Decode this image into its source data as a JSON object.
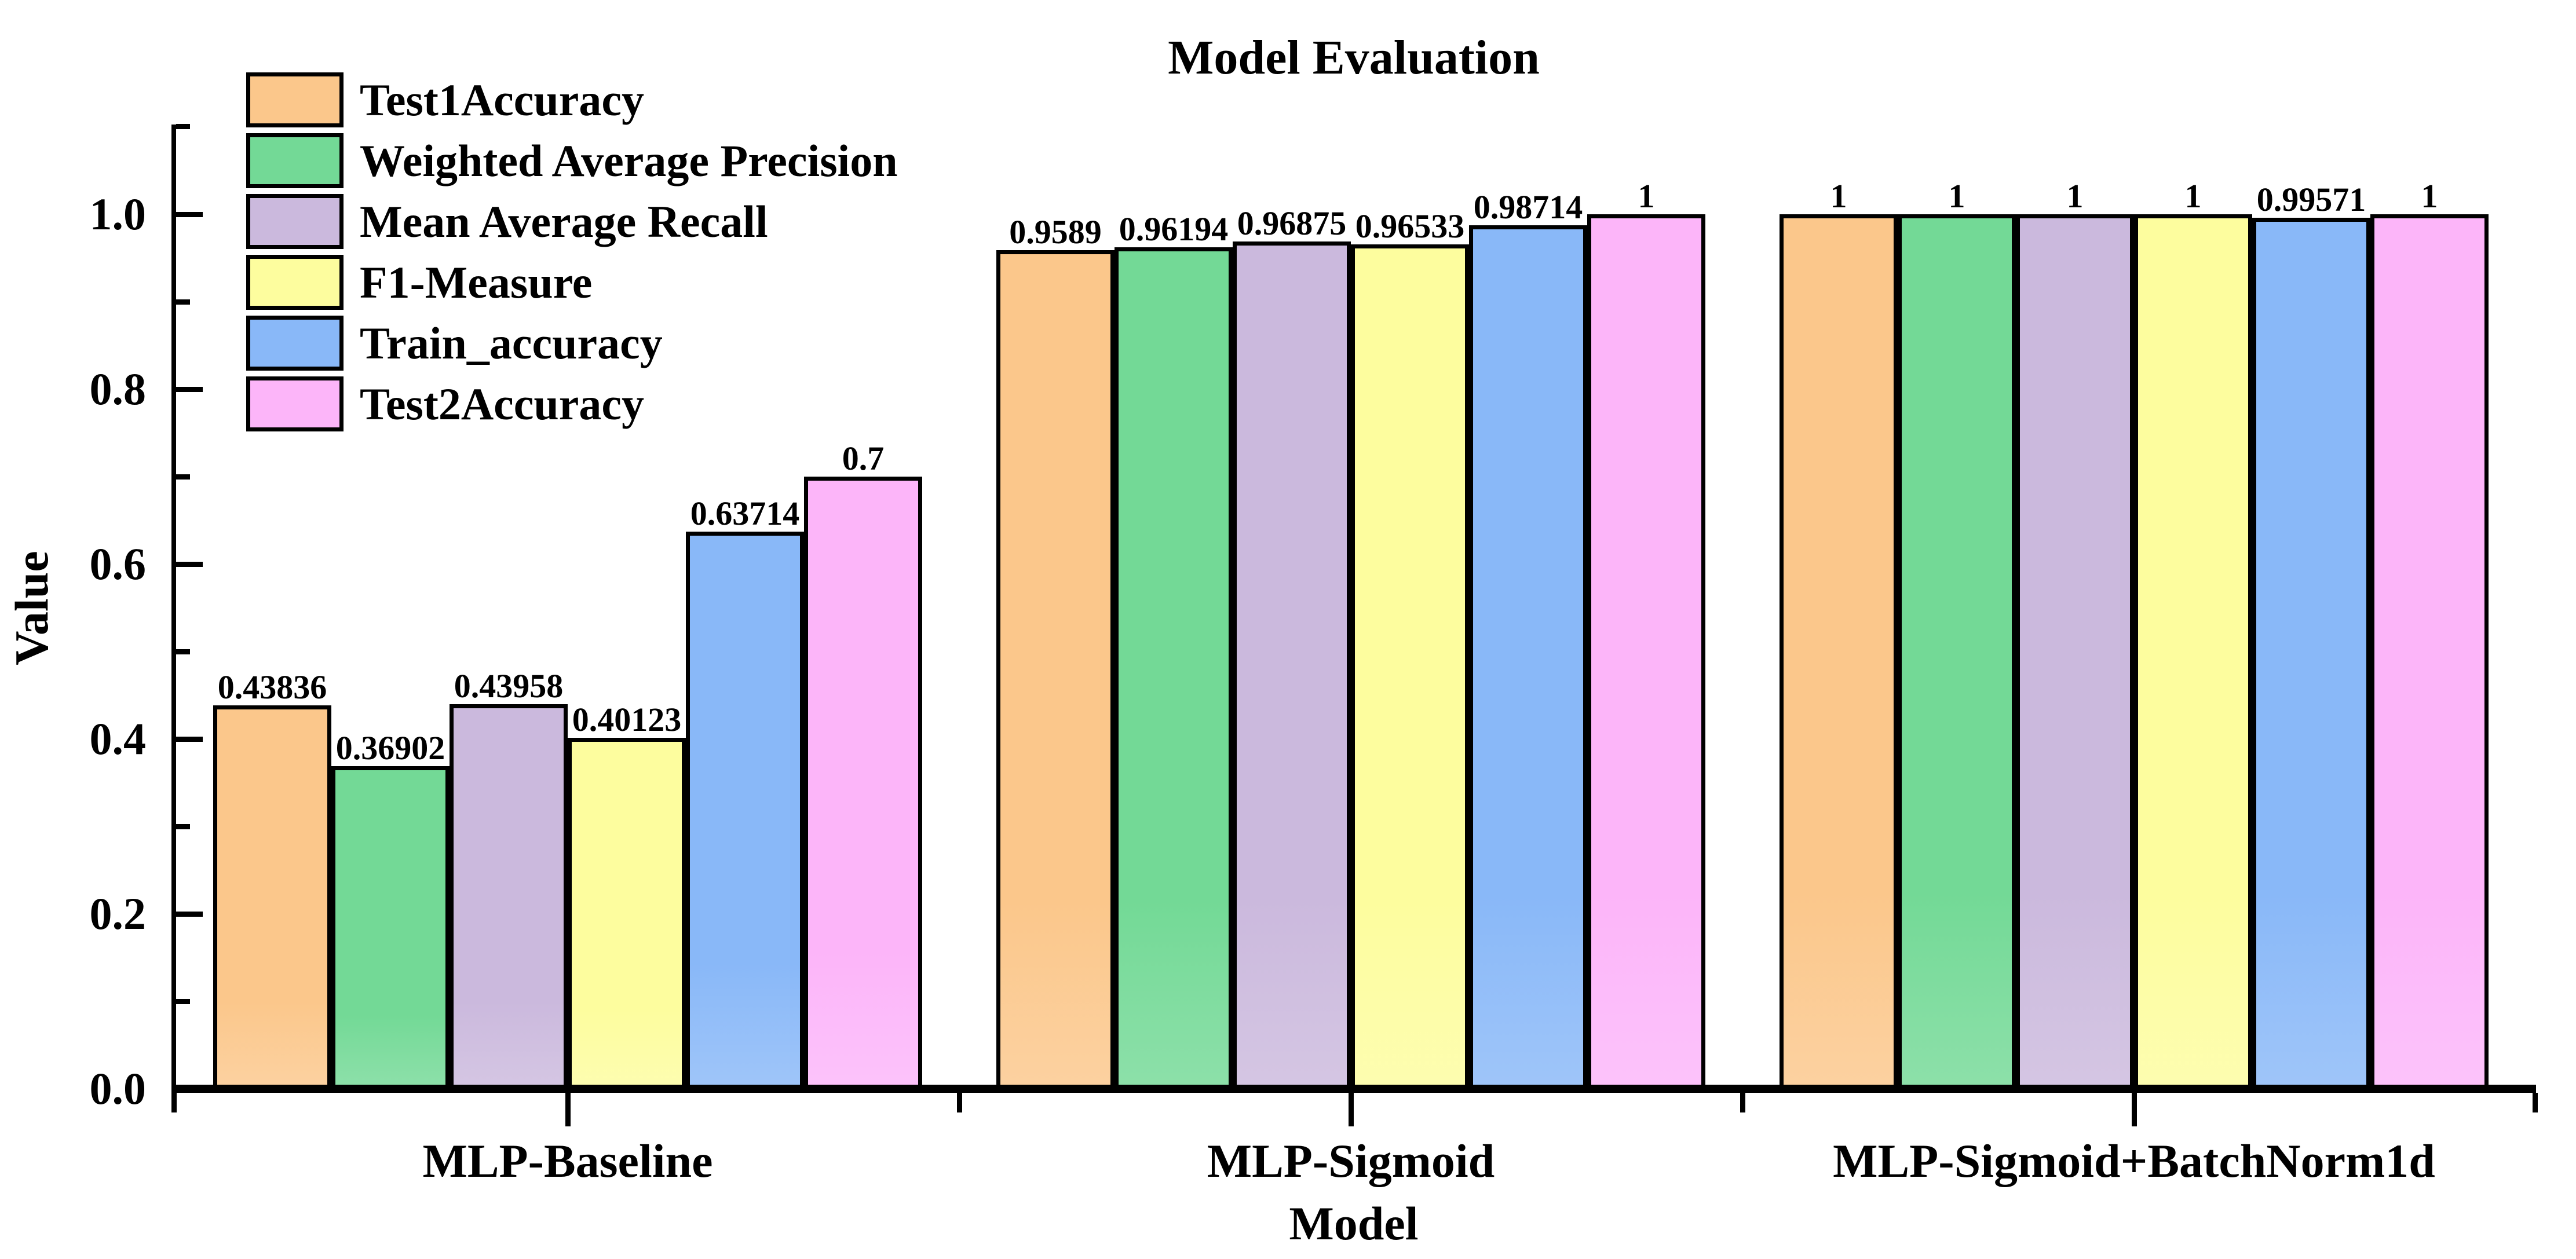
{
  "title": "Model Evaluation",
  "chart_data": {
    "type": "bar",
    "title": "Model Evaluation",
    "xlabel": "Model",
    "ylabel": "Value",
    "categories": [
      "MLP-Baseline",
      "MLP-Sigmoid",
      "MLP-Sigmoid+BatchNorm1d"
    ],
    "series": [
      {
        "name": "Test1Accuracy",
        "color": "#fbc78b",
        "values": [
          0.43836,
          0.9589,
          1
        ]
      },
      {
        "name": "Weighted Average Precision",
        "color": "#73d996",
        "values": [
          0.36902,
          0.96194,
          1
        ]
      },
      {
        "name": "Mean Average Recall",
        "color": "#cbb9dd",
        "values": [
          0.43958,
          0.96875,
          1
        ]
      },
      {
        "name": "F1-Measure",
        "color": "#fdfd9e",
        "values": [
          0.40123,
          0.96533,
          1
        ]
      },
      {
        "name": "Train_accuracy",
        "color": "#89b8f8",
        "values": [
          0.63714,
          0.98714,
          0.99571
        ]
      },
      {
        "name": "Test2Accuracy",
        "color": "#fcb5f9",
        "values": [
          0.7,
          1,
          1
        ]
      }
    ],
    "ytick_labels": [
      "0.0",
      "0.2",
      "0.4",
      "0.6",
      "0.8",
      "1.0"
    ],
    "ylim": [
      0,
      1.1
    ],
    "bar_edge_color": "#000000",
    "value_labels": true,
    "grid": false,
    "legend_position": "upper-left"
  }
}
